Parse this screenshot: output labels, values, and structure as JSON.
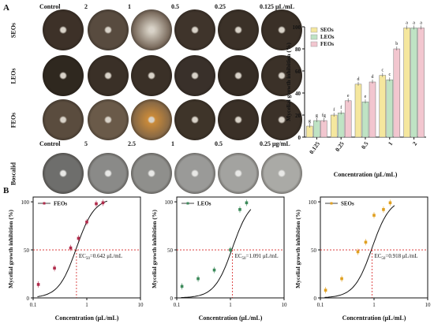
{
  "panel_labels": {
    "a": "A",
    "b": "B"
  },
  "plates": {
    "top_headers": [
      "Control",
      "2",
      "1",
      "0.5",
      "0.25",
      "0.125 μL/mL"
    ],
    "bottom_headers": [
      "Control",
      "5",
      "2.5",
      "1",
      "0.5",
      "0.25   μg/mL"
    ],
    "row_labels": [
      "SEOs",
      "LEOs",
      "FEOs",
      "Boscalid"
    ]
  },
  "chart_data": [
    {
      "type": "bar",
      "title": "",
      "xlabel": "Concentration (μL/mL)",
      "ylabel": "Mycelial growth inhibition (%)",
      "categories": [
        "0.125",
        "0.25",
        "0.5",
        "1",
        "2"
      ],
      "ylim": [
        0,
        100
      ],
      "yticks": [
        0,
        20,
        40,
        60,
        80,
        100
      ],
      "legend_position": "top-left",
      "series": [
        {
          "name": "SEOs",
          "color": "#f5e79e",
          "values": [
            10,
            20,
            48,
            56,
            99
          ],
          "letters": [
            "g",
            "f",
            "d",
            "c",
            "a"
          ]
        },
        {
          "name": "LEOs",
          "color": "#bfe3c4",
          "values": [
            15,
            22,
            32,
            52,
            99
          ],
          "letters": [
            "g",
            "f",
            "e",
            "c",
            "a"
          ]
        },
        {
          "name": "FEOs",
          "color": "#f2c6cf",
          "values": [
            15,
            33,
            50,
            80,
            99
          ],
          "letters": [
            "fg",
            "e",
            "d",
            "b",
            "a"
          ]
        }
      ]
    },
    {
      "type": "scatter",
      "legend": "FEOs",
      "color": "#b02a4a",
      "xlabel": "Concentration (μL/mL)",
      "ylabel": "Mycelial growth inhibition (%)",
      "xscale": "log",
      "xlim": [
        0.1,
        10
      ],
      "ylim": [
        0,
        105
      ],
      "xticks": [
        "0.1",
        "1",
        "10"
      ],
      "yticks": [
        0,
        50,
        100
      ],
      "points": [
        [
          0.125,
          14
        ],
        [
          0.25,
          31
        ],
        [
          0.5,
          52
        ],
        [
          0.7,
          62
        ],
        [
          1,
          79
        ],
        [
          1.5,
          98
        ],
        [
          2,
          99
        ]
      ],
      "ec50": 0.642,
      "ec50_label": "EC",
      "ec50_sub": "50",
      "ec50_value": "=0.642 μL/mL"
    },
    {
      "type": "scatter",
      "legend": "LEOs",
      "color": "#3c8a5a",
      "xlabel": "Concentration (μL/mL)",
      "ylabel": "Mycelial growth inhibition (%)",
      "xscale": "log",
      "xlim": [
        0.1,
        10
      ],
      "ylim": [
        0,
        105
      ],
      "xticks": [
        "0.1",
        "1",
        "10"
      ],
      "yticks": [
        0,
        50,
        100
      ],
      "points": [
        [
          0.125,
          12
        ],
        [
          0.25,
          20
        ],
        [
          0.5,
          29
        ],
        [
          1,
          50
        ],
        [
          1.5,
          92
        ],
        [
          2,
          99
        ]
      ],
      "ec50": 1.091,
      "ec50_label": "EC",
      "ec50_sub": "50",
      "ec50_value": "=1.091 μL/mL"
    },
    {
      "type": "scatter",
      "legend": "SEOs",
      "color": "#e0a020",
      "xlabel": "Concentration (μL/mL)",
      "ylabel": "Mycelial growth inhibition (%)",
      "xscale": "log",
      "xlim": [
        0.1,
        10
      ],
      "ylim": [
        0,
        105
      ],
      "xticks": [
        "0.1",
        "1",
        "10"
      ],
      "yticks": [
        0,
        50,
        100
      ],
      "points": [
        [
          0.125,
          8
        ],
        [
          0.25,
          20
        ],
        [
          0.5,
          48
        ],
        [
          0.7,
          58
        ],
        [
          1,
          86
        ],
        [
          1.5,
          92
        ],
        [
          2,
          99
        ]
      ],
      "ec50": 0.918,
      "ec50_label": "EC",
      "ec50_sub": "50",
      "ec50_value": "=0.918 μL/mL"
    }
  ]
}
